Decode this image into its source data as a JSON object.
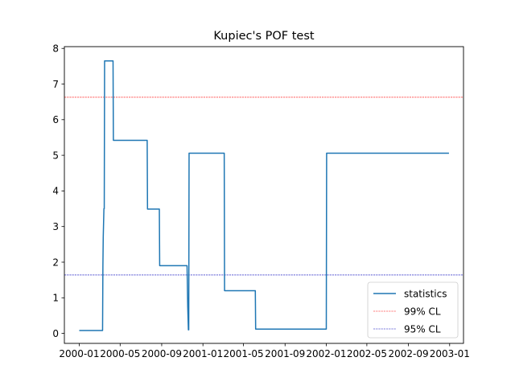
{
  "chart_data": {
    "type": "line",
    "title": "Kupiec's POF test",
    "xlabel": "",
    "ylabel": "",
    "xlim": [
      "1999-11-18",
      "2003-02-11"
    ],
    "ylim": [
      -0.28,
      8.05
    ],
    "grid": false,
    "legend": "lower-right",
    "x_ticks": [
      "2000-01",
      "2000-05",
      "2000-09",
      "2001-01",
      "2001-05",
      "2001-09",
      "2002-01",
      "2002-05",
      "2002-09",
      "2003-01"
    ],
    "y_ticks": [
      "0",
      "1",
      "2",
      "3",
      "4",
      "5",
      "6",
      "7",
      "8"
    ],
    "series": [
      {
        "name": "statistics",
        "color": "#1f77b4",
        "style": "solid",
        "x": [
          "2000-01-01",
          "2000-03-10",
          "2000-03-11",
          "2000-03-12",
          "2000-03-14",
          "2000-03-15",
          "2000-03-16",
          "2000-03-17",
          "2000-03-18",
          "2000-04-10",
          "2000-04-11",
          "2000-07-20",
          "2000-07-21",
          "2000-08-25",
          "2000-08-26",
          "2000-11-15",
          "2000-11-17",
          "2000-11-19",
          "2000-11-20",
          "2000-11-21",
          "2001-03-05",
          "2001-03-06",
          "2001-06-05",
          "2001-06-06",
          "2001-08-20",
          "2001-08-21",
          "2002-01-01",
          "2002-01-02",
          "2002-12-30"
        ],
        "values": [
          0.08,
          0.08,
          1.9,
          2.7,
          3.5,
          3.5,
          7.65,
          7.65,
          7.65,
          7.65,
          5.42,
          5.42,
          3.49,
          3.49,
          1.9,
          1.9,
          0.75,
          0.1,
          0.1,
          5.06,
          5.06,
          1.2,
          1.2,
          0.12,
          0.12,
          0.12,
          0.12,
          5.06,
          5.06
        ]
      },
      {
        "name": "99% CL",
        "color": "#ff0000",
        "style": "dashed",
        "y": 6.63
      },
      {
        "name": "95% CL",
        "color": "#0000bb",
        "style": "dashed",
        "y": 1.64
      }
    ]
  }
}
